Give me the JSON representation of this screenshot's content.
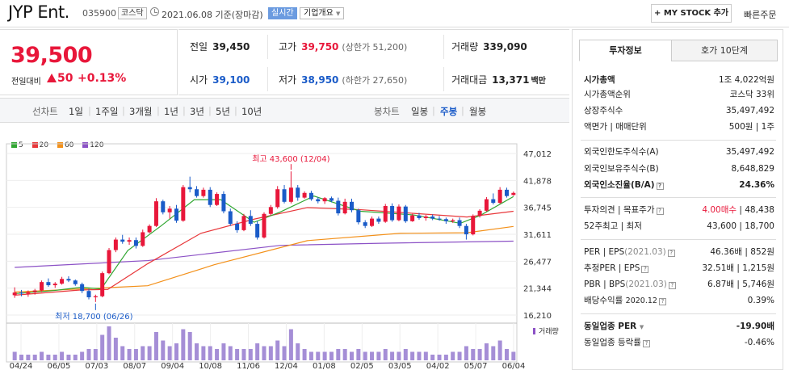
{
  "header": {
    "name": "JYP Ent.",
    "code": "035900",
    "market": "코스닥",
    "datetime": "2021.06.08 기준(장마감)",
    "realtime": "실시간",
    "company_info": "기업개요",
    "my_stock": "+ MY STOCK 추가",
    "quick_order": "빠른주문"
  },
  "price": {
    "current": "39,500",
    "change_label": "전일대비",
    "change": "50",
    "change_pct": "+0.13%"
  },
  "stats": {
    "prev_label": "전일",
    "prev": "39,450",
    "high_label": "고가",
    "high": "39,750",
    "upper_limit": "(상한가 51,200)",
    "volume_label": "거래량",
    "volume": "339,090",
    "open_label": "시가",
    "open": "39,100",
    "low_label": "저가",
    "low": "38,950",
    "lower_limit": "(하한가 27,650)",
    "amount_label": "거래대금",
    "amount": "13,371",
    "amount_unit": "백만"
  },
  "periods": {
    "line_chart": "선차트",
    "day1": "1일",
    "week1": "1주일",
    "month3": "3개월",
    "year1": "1년",
    "year3": "3년",
    "year5": "5년",
    "year10": "10년",
    "candle_chart": "봉차트",
    "daily": "일봉",
    "weekly": "주봉",
    "monthly": "월봉"
  },
  "legend": {
    "ma5": "5",
    "ma20": "20",
    "ma60": "60",
    "ma120": "120",
    "c5": "#31a732",
    "c20": "#e8373a",
    "c60": "#f39019",
    "c120": "#8c52c6"
  },
  "chart_data": {
    "type": "candlestick",
    "annotations": {
      "high": "최고 43,600 (12/04)",
      "low": "최저 18,700 (06/26)"
    },
    "y_ticks": [
      "47,012",
      "41,878",
      "36,745",
      "31,611",
      "26,477",
      "21,344",
      "16,210"
    ],
    "y_range": [
      16210,
      47012
    ],
    "volume_label": "거래량",
    "x_ticks": [
      "04/24",
      "06/05",
      "07/03",
      "08/07",
      "09/04",
      "10/08",
      "11/06",
      "12/04",
      "01/08",
      "02/05",
      "03/05",
      "04/02",
      "05/07",
      "06/04"
    ],
    "candles": [
      [
        20000,
        21500,
        19500,
        20500
      ],
      [
        20500,
        21000,
        19800,
        20300
      ],
      [
        20300,
        20900,
        19700,
        20600
      ],
      [
        20600,
        21200,
        20100,
        20900
      ],
      [
        20900,
        22800,
        20600,
        22500
      ],
      [
        22500,
        23200,
        21600,
        21900
      ],
      [
        21900,
        22500,
        21400,
        22200
      ],
      [
        22200,
        23500,
        22000,
        23100
      ],
      [
        23100,
        23600,
        22500,
        22800
      ],
      [
        22800,
        23000,
        21800,
        22100
      ],
      [
        22100,
        22400,
        20400,
        20800
      ],
      [
        20800,
        21200,
        19200,
        19600
      ],
      [
        19600,
        20100,
        18700,
        19800
      ],
      [
        19800,
        24500,
        19600,
        24200
      ],
      [
        24200,
        29000,
        24000,
        28600
      ],
      [
        28600,
        31000,
        28200,
        30600
      ],
      [
        30600,
        31500,
        29800,
        30200
      ],
      [
        30200,
        31000,
        29600,
        30500
      ],
      [
        30500,
        31000,
        28900,
        29400
      ],
      [
        29400,
        32500,
        29200,
        32000
      ],
      [
        32000,
        33500,
        31800,
        33200
      ],
      [
        33200,
        38500,
        33000,
        37900
      ],
      [
        37900,
        38200,
        35400,
        35800
      ],
      [
        35800,
        37000,
        34600,
        36500
      ],
      [
        36500,
        37200,
        33800,
        34200
      ],
      [
        34200,
        41000,
        34000,
        40600
      ],
      [
        40600,
        42600,
        39600,
        40200
      ],
      [
        40200,
        40800,
        38600,
        38900
      ],
      [
        38900,
        40500,
        38600,
        40100
      ],
      [
        40100,
        40600,
        36800,
        37200
      ],
      [
        37200,
        39600,
        37000,
        39300
      ],
      [
        39300,
        39800,
        35600,
        36000
      ],
      [
        36000,
        36500,
        33200,
        33600
      ],
      [
        33600,
        34100,
        31900,
        32400
      ],
      [
        32400,
        35500,
        32200,
        35100
      ],
      [
        35100,
        36200,
        33200,
        33600
      ],
      [
        33600,
        34100,
        30600,
        31000
      ],
      [
        31000,
        35800,
        30800,
        35500
      ],
      [
        35500,
        37200,
        35200,
        36800
      ],
      [
        36800,
        40800,
        36500,
        40200
      ],
      [
        40200,
        41000,
        37500,
        37800
      ],
      [
        37800,
        43600,
        37500,
        40500
      ],
      [
        40500,
        41000,
        38000,
        38600
      ],
      [
        38600,
        39800,
        38400,
        39500
      ],
      [
        39500,
        39900,
        38000,
        38300
      ],
      [
        38300,
        38700,
        37500,
        37900
      ],
      [
        37900,
        38700,
        37400,
        38500
      ],
      [
        38500,
        38800,
        37700,
        38000
      ],
      [
        38000,
        38600,
        35200,
        35600
      ],
      [
        35600,
        38400,
        35400,
        37800
      ],
      [
        37800,
        38400,
        35800,
        36200
      ],
      [
        36200,
        36500,
        33500,
        33900
      ],
      [
        33900,
        34300,
        32800,
        33200
      ],
      [
        33200,
        35000,
        33000,
        34600
      ],
      [
        34600,
        35000,
        33600,
        34000
      ],
      [
        34000,
        37400,
        33800,
        37000
      ],
      [
        37000,
        37500,
        34000,
        34300
      ],
      [
        34300,
        37300,
        34100,
        36900
      ],
      [
        36900,
        37200,
        33800,
        34100
      ],
      [
        34100,
        35500,
        34000,
        35200
      ],
      [
        35200,
        35700,
        34400,
        34700
      ],
      [
        34700,
        35300,
        34200,
        35000
      ],
      [
        35000,
        35400,
        34300,
        34600
      ],
      [
        34600,
        35100,
        34200,
        34500
      ],
      [
        34500,
        34800,
        33600,
        34100
      ],
      [
        34100,
        34600,
        33800,
        34300
      ],
      [
        34300,
        34800,
        32800,
        33200
      ],
      [
        33200,
        33600,
        30600,
        31600
      ],
      [
        31600,
        35400,
        31400,
        35100
      ],
      [
        35100,
        36400,
        34800,
        36100
      ],
      [
        36100,
        38700,
        35900,
        38300
      ],
      [
        38300,
        39400,
        37300,
        37600
      ],
      [
        37600,
        40600,
        37400,
        40100
      ],
      [
        40100,
        40500,
        38600,
        38900
      ],
      [
        39100,
        39750,
        38950,
        39500
      ]
    ],
    "volumes": [
      3,
      2,
      2,
      2,
      3,
      2,
      2,
      3,
      2,
      2,
      3,
      4,
      4,
      9,
      12,
      8,
      5,
      4,
      4,
      5,
      5,
      10,
      7,
      5,
      6,
      11,
      10,
      6,
      5,
      5,
      4,
      6,
      5,
      4,
      4,
      4,
      6,
      5,
      5,
      7,
      5,
      11,
      6,
      4,
      3,
      3,
      3,
      3,
      4,
      4,
      3,
      4,
      3,
      3,
      3,
      4,
      3,
      3,
      4,
      3,
      3,
      3,
      2,
      2,
      2,
      3,
      3,
      5,
      4,
      4,
      6,
      5,
      7,
      4,
      3
    ],
    "ma5": [
      [
        0,
        20300
      ],
      [
        6,
        20900
      ],
      [
        10,
        21500
      ],
      [
        13,
        21200
      ],
      [
        17,
        28500
      ],
      [
        22,
        33200
      ],
      [
        27,
        38200
      ],
      [
        31,
        38200
      ],
      [
        36,
        33900
      ],
      [
        40,
        35900
      ],
      [
        45,
        38900
      ],
      [
        52,
        36000
      ],
      [
        60,
        35300
      ],
      [
        67,
        33700
      ],
      [
        70,
        35200
      ],
      [
        75,
        38800
      ]
    ],
    "ma20": [
      [
        0,
        20000
      ],
      [
        10,
        21000
      ],
      [
        14,
        21100
      ],
      [
        20,
        26000
      ],
      [
        28,
        31800
      ],
      [
        36,
        34500
      ],
      [
        44,
        36700
      ],
      [
        52,
        36300
      ],
      [
        60,
        35600
      ],
      [
        68,
        34900
      ],
      [
        75,
        36000
      ]
    ],
    "ma60": [
      [
        0,
        20600
      ],
      [
        20,
        21800
      ],
      [
        30,
        25800
      ],
      [
        44,
        30400
      ],
      [
        58,
        31800
      ],
      [
        68,
        31900
      ],
      [
        75,
        33100
      ]
    ],
    "ma120": [
      [
        0,
        25300
      ],
      [
        20,
        26600
      ],
      [
        40,
        29500
      ],
      [
        55,
        29900
      ],
      [
        75,
        30300
      ]
    ]
  },
  "side": {
    "tab_invest": "투자정보",
    "tab_quote": "호가 10단계",
    "market_cap_label": "시가총액",
    "market_cap": "1조 4,022억원",
    "rank_label": "시가총액순위",
    "rank": "코스닥 33위",
    "shares_label": "상장주식수",
    "shares": "35,497,492",
    "par_label": "액면가 | 매매단위",
    "par": "500원 | 1주",
    "foreign_limit_label": "외국인한도주식수(A)",
    "foreign_limit": "35,497,492",
    "foreign_hold_label": "외국인보유주식수(B)",
    "foreign_hold": "8,648,829",
    "foreign_ratio_label": "외국인소진율(B/A)",
    "foreign_ratio": "24.36%",
    "opinion_label": "투자의견 | 목표주가",
    "opinion": "4.00매수",
    "target": "48,438",
    "w52_label": "52주최고 | 최저",
    "w52": "43,600 | 18,700",
    "per_label": "PER | EPS",
    "per_year": "(2021.03)",
    "per": "46.36배 | 852원",
    "est_per_label": "추정PER | EPS",
    "est_per": "32.51배 | 1,215원",
    "pbr_label": "PBR | BPS",
    "pbr_year": "(2021.03)",
    "pbr": "6.87배 | 5,746원",
    "div_label": "배당수익률",
    "div_year": "2020.12",
    "div": "0.39%",
    "sector_per_label": "동일업종 PER",
    "sector_per": "-19.90배",
    "sector_chg_label": "동일업종 등락률",
    "sector_chg": "-0.46%"
  }
}
